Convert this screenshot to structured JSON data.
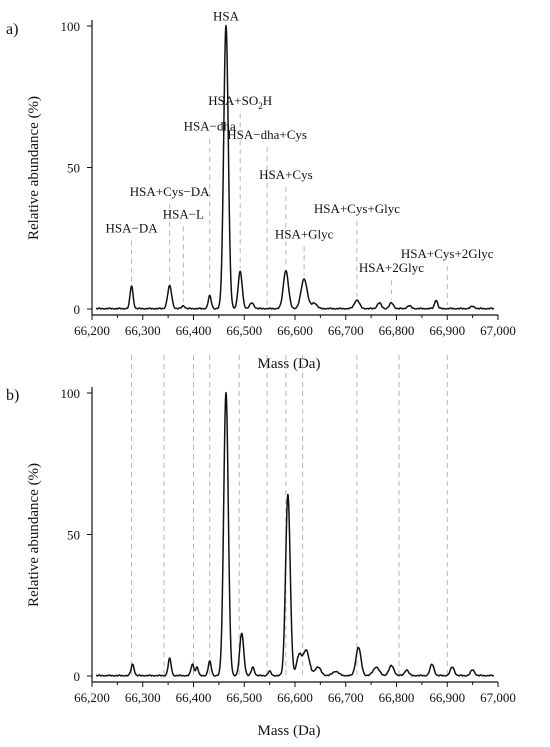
{
  "chart_data": [
    {
      "panel_label": "a)",
      "type": "line",
      "xlabel": "Mass (Da)",
      "ylabel": "Relative abundance (%)",
      "xlim": [
        66200,
        67000
      ],
      "ylim": [
        0,
        100
      ],
      "x_ticks": [
        "66,200",
        "66,300",
        "66,400",
        "66,500",
        "66,600",
        "66,700",
        "66,800",
        "66,900",
        "67,000"
      ],
      "y_ticks": [
        "0",
        "50",
        "100"
      ],
      "peaks": [
        {
          "x": 66278,
          "y": 8,
          "w": 3
        },
        {
          "x": 66353,
          "y": 8,
          "w": 4
        },
        {
          "x": 66380,
          "y": 1,
          "w": 3
        },
        {
          "x": 66432,
          "y": 4.5,
          "w": 3
        },
        {
          "x": 66464,
          "y": 100,
          "w": 4.5
        },
        {
          "x": 66492,
          "y": 13,
          "w": 4
        },
        {
          "x": 66515,
          "y": 2,
          "w": 4
        },
        {
          "x": 66582,
          "y": 13.5,
          "w": 5
        },
        {
          "x": 66618,
          "y": 10.5,
          "w": 6
        },
        {
          "x": 66638,
          "y": 2,
          "w": 5
        },
        {
          "x": 66722,
          "y": 3,
          "w": 5
        },
        {
          "x": 66766,
          "y": 2,
          "w": 4
        },
        {
          "x": 66790,
          "y": 2,
          "w": 4
        },
        {
          "x": 66825,
          "y": 1,
          "w": 4
        },
        {
          "x": 66878,
          "y": 3,
          "w": 3
        },
        {
          "x": 66950,
          "y": 0.8,
          "w": 4
        }
      ],
      "annotations": [
        {
          "label": "HSA−DA",
          "x": 66278,
          "label_y": 27
        },
        {
          "label": "HSA−L",
          "x": 66380,
          "label_y": 32
        },
        {
          "label": "HSA+Cys−DA",
          "x": 66353,
          "label_y": 40
        },
        {
          "label": "HSA−dha",
          "x": 66432,
          "label_y": 63
        },
        {
          "label": "HSA",
          "x": 66464,
          "label_y": 102
        },
        {
          "label": "HSA+SO",
          "sub": "2",
          "tail": "H",
          "x": 66492,
          "label_y": 72
        },
        {
          "label": "HSA−dha+Cys",
          "x": 66545,
          "label_y": 60
        },
        {
          "label": "HSA+Cys",
          "x": 66582,
          "label_y": 46
        },
        {
          "label": "HSA+Glyc",
          "x": 66618,
          "label_y": 25
        },
        {
          "label": "HSA+Cys+Glyc",
          "x": 66722,
          "label_y": 34
        },
        {
          "label": "HSA+2Glyc",
          "x": 66790,
          "label_y": 13
        },
        {
          "label": "HSA+Cys+2Glyc",
          "x": 66900,
          "label_y": 18
        }
      ]
    },
    {
      "panel_label": "b)",
      "type": "line",
      "xlabel": "Mass (Da)",
      "ylabel": "Relative abundance (%)",
      "xlim": [
        66200,
        67000
      ],
      "ylim": [
        0,
        100
      ],
      "x_ticks": [
        "66,200",
        "66,300",
        "66,400",
        "66,500",
        "66,600",
        "66,700",
        "66,800",
        "66,900",
        "67,000"
      ],
      "y_ticks": [
        "0",
        "50",
        "100"
      ],
      "guide_x": [
        66278,
        66342,
        66400,
        66432,
        66490,
        66545,
        66582,
        66615,
        66722,
        66805,
        66900
      ],
      "peaks": [
        {
          "x": 66280,
          "y": 4,
          "w": 3
        },
        {
          "x": 66353,
          "y": 6,
          "w": 3
        },
        {
          "x": 66398,
          "y": 4,
          "w": 3
        },
        {
          "x": 66407,
          "y": 3,
          "w": 2.5
        },
        {
          "x": 66432,
          "y": 5,
          "w": 3
        },
        {
          "x": 66464,
          "y": 100,
          "w": 4.5
        },
        {
          "x": 66495,
          "y": 15,
          "w": 4
        },
        {
          "x": 66517,
          "y": 3,
          "w": 3
        },
        {
          "x": 66550,
          "y": 1.5,
          "w": 3
        },
        {
          "x": 66586,
          "y": 64,
          "w": 4.5
        },
        {
          "x": 66608,
          "y": 7,
          "w": 5
        },
        {
          "x": 66622,
          "y": 9,
          "w": 6
        },
        {
          "x": 66645,
          "y": 3,
          "w": 6
        },
        {
          "x": 66680,
          "y": 1.5,
          "w": 6
        },
        {
          "x": 66725,
          "y": 10,
          "w": 5
        },
        {
          "x": 66760,
          "y": 3,
          "w": 6
        },
        {
          "x": 66790,
          "y": 3.5,
          "w": 5
        },
        {
          "x": 66820,
          "y": 2,
          "w": 4
        },
        {
          "x": 66870,
          "y": 4,
          "w": 4
        },
        {
          "x": 66910,
          "y": 3,
          "w": 4
        },
        {
          "x": 66950,
          "y": 2,
          "w": 4
        }
      ]
    }
  ]
}
